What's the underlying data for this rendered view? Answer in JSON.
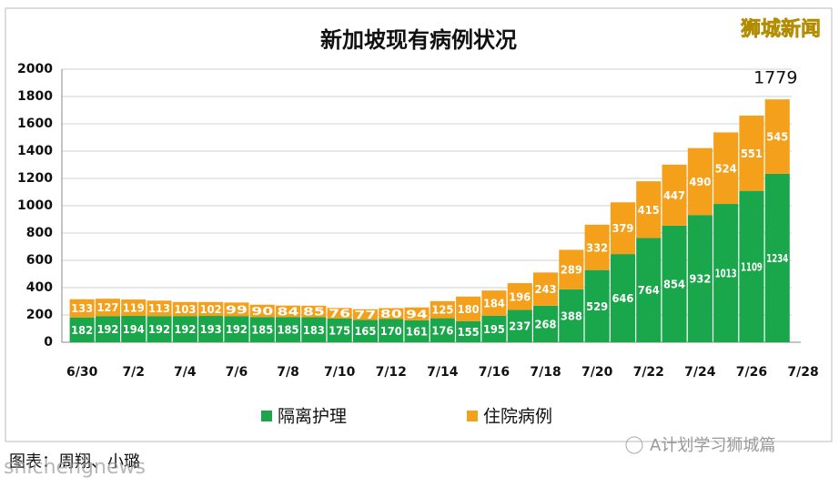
{
  "chart_data": {
    "type": "stacked_bar",
    "title": "新加坡现有病例状况",
    "categories": [
      "6/30",
      null,
      "7/2",
      null,
      "7/4",
      null,
      "7/6",
      null,
      "7/8",
      null,
      "7/10",
      null,
      "7/12",
      null,
      "7/14",
      null,
      "7/16",
      null,
      "7/18",
      null,
      "7/20",
      null,
      "7/22",
      null,
      "7/24",
      null,
      "7/26",
      null,
      "7/28"
    ],
    "series": [
      {
        "name": "隔离护理",
        "color": "#1aa64a",
        "values": [
          182,
          192,
          194,
          192,
          192,
          193,
          192,
          185,
          185,
          183,
          175,
          165,
          170,
          161,
          176,
          155,
          195,
          237,
          268,
          388,
          529,
          646,
          764,
          854,
          932,
          1013,
          1109,
          1234,
          null
        ]
      },
      {
        "name": "住院病例",
        "color": "#f5a01a",
        "values": [
          133,
          127,
          119,
          113,
          103,
          102,
          99,
          90,
          84,
          85,
          76,
          77,
          80,
          94,
          125,
          180,
          184,
          196,
          243,
          289,
          332,
          379,
          415,
          447,
          490,
          524,
          551,
          545,
          null
        ]
      }
    ],
    "annotation": "1779",
    "ylim": [
      0,
      2000
    ],
    "yticks": [
      0,
      200,
      400,
      600,
      800,
      1000,
      1200,
      1400,
      1600,
      1800,
      2000
    ],
    "grid": true,
    "legend": "bottom"
  },
  "watermark": "狮城新闻",
  "credit": "图表：周翔、小璐",
  "site": "shichengnews",
  "wechat": "A计划学习狮城篇"
}
